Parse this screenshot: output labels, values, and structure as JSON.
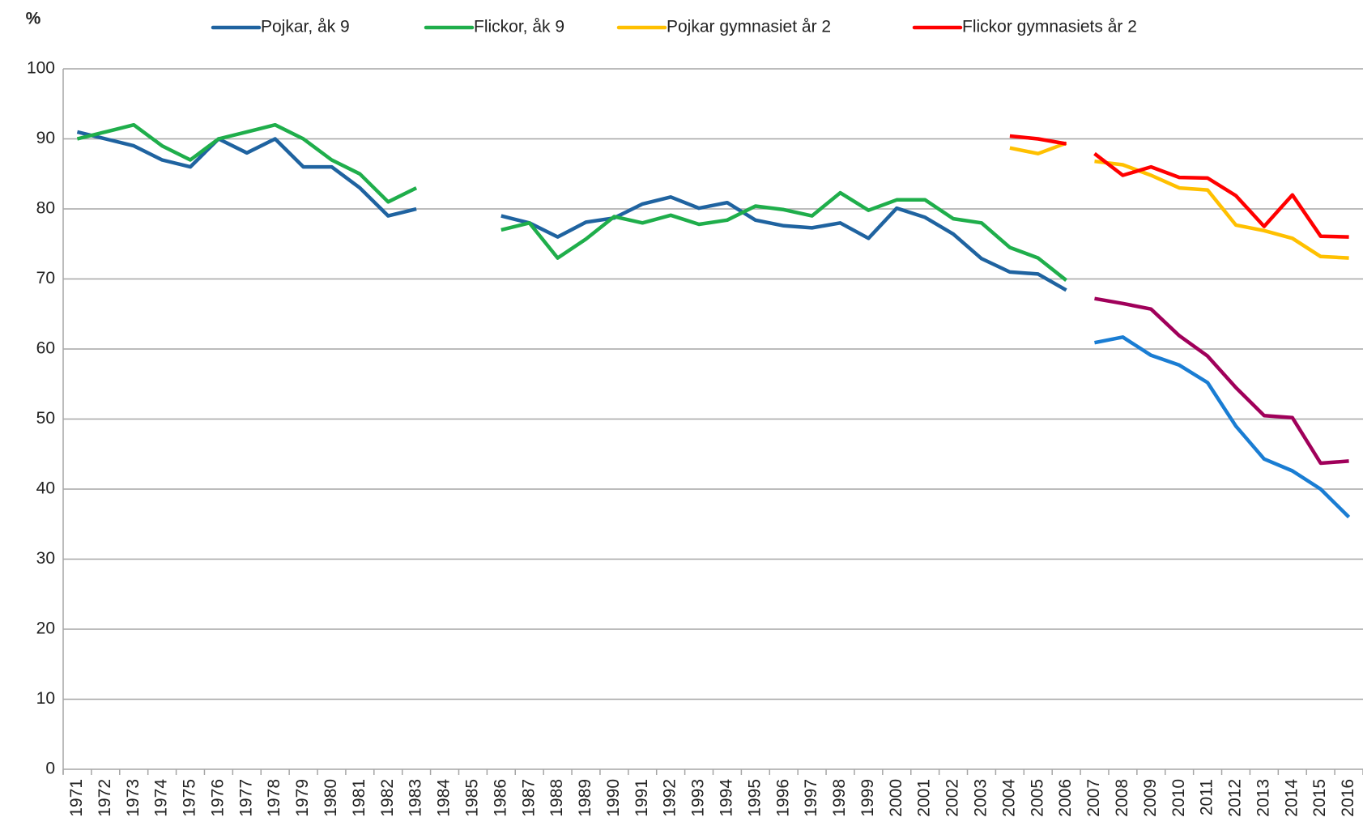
{
  "chart_data": {
    "type": "line",
    "ylabel": "%",
    "categories": [
      "1971",
      "1972",
      "1973",
      "1974",
      "1975",
      "1976",
      "1977",
      "1978",
      "1979",
      "1980",
      "1981",
      "1982",
      "1983",
      "1984",
      "1985",
      "1986",
      "1987",
      "1988",
      "1989",
      "1990",
      "1991",
      "1992",
      "1993",
      "1994",
      "1995",
      "1996",
      "1997",
      "1998",
      "1999",
      "2000",
      "2001",
      "2002",
      "2003",
      "2004",
      "2005",
      "2006",
      "2007",
      "2008",
      "2009",
      "2010",
      "2011",
      "2012",
      "2013",
      "2014",
      "2015",
      "2016"
    ],
    "ylim": [
      0,
      100
    ],
    "yticks": [
      0,
      10,
      20,
      30,
      40,
      50,
      60,
      70,
      80,
      90,
      100
    ],
    "grid": true,
    "series": [
      {
        "name": "Pojkar, åk 9",
        "color": "#1f63a0",
        "values": [
          91,
          90,
          89,
          87,
          86,
          90,
          88,
          90,
          86,
          86,
          83,
          79,
          80,
          null,
          null,
          79,
          78,
          76,
          78.1,
          78.7,
          80.7,
          81.7,
          80.1,
          80.9,
          78.4,
          77.6,
          77.3,
          78,
          75.8,
          80.1,
          78.8,
          76.4,
          72.9,
          71,
          70.7,
          68.4,
          null,
          null,
          null,
          null,
          null,
          null,
          null,
          null,
          null,
          null
        ]
      },
      {
        "name": "Flickor, åk 9",
        "color": "#1fae4b",
        "values": [
          90,
          91,
          92,
          89,
          87,
          90,
          91,
          92,
          90,
          87,
          85,
          81,
          83,
          null,
          null,
          77,
          78,
          73,
          75.7,
          78.9,
          78,
          79.1,
          77.8,
          78.4,
          80.4,
          79.9,
          79,
          82.3,
          79.8,
          81.3,
          81.3,
          78.6,
          78,
          74.5,
          73,
          69.8,
          null,
          null,
          null,
          null,
          null,
          null,
          null,
          null,
          null,
          null
        ]
      },
      {
        "name": "Pojkar gymnasiet år 2",
        "color": "#ffc000",
        "values": [
          null,
          null,
          null,
          null,
          null,
          null,
          null,
          null,
          null,
          null,
          null,
          null,
          null,
          null,
          null,
          null,
          null,
          null,
          null,
          null,
          null,
          null,
          null,
          null,
          null,
          null,
          null,
          null,
          null,
          null,
          null,
          null,
          null,
          88.7,
          87.9,
          89.4,
          null,
          null,
          null,
          null,
          null,
          null,
          null,
          null,
          null,
          null
        ]
      },
      {
        "name": "Flickor gymnasiets år 2",
        "color": "#ff0000",
        "values": [
          null,
          null,
          null,
          null,
          null,
          null,
          null,
          null,
          null,
          null,
          null,
          null,
          null,
          null,
          null,
          null,
          null,
          null,
          null,
          null,
          null,
          null,
          null,
          null,
          null,
          null,
          null,
          null,
          null,
          null,
          null,
          null,
          null,
          90.4,
          90,
          89.3,
          null,
          null,
          null,
          null,
          null,
          null,
          null,
          null,
          null,
          null
        ]
      },
      {
        "color": "#ffc000",
        "values": [
          null,
          null,
          null,
          null,
          null,
          null,
          null,
          null,
          null,
          null,
          null,
          null,
          null,
          null,
          null,
          null,
          null,
          null,
          null,
          null,
          null,
          null,
          null,
          null,
          null,
          null,
          null,
          null,
          null,
          null,
          null,
          null,
          null,
          null,
          null,
          null,
          86.8,
          86.3,
          84.8,
          83,
          82.7,
          77.7,
          76.9,
          75.8,
          73.2,
          73
        ]
      },
      {
        "color": "#ff0000",
        "values": [
          null,
          null,
          null,
          null,
          null,
          null,
          null,
          null,
          null,
          null,
          null,
          null,
          null,
          null,
          null,
          null,
          null,
          null,
          null,
          null,
          null,
          null,
          null,
          null,
          null,
          null,
          null,
          null,
          null,
          null,
          null,
          null,
          null,
          null,
          null,
          null,
          87.9,
          84.8,
          86,
          84.5,
          84.4,
          81.9,
          77.5,
          82,
          76.1,
          76
        ]
      },
      {
        "color": "#1a7dd3",
        "values": [
          null,
          null,
          null,
          null,
          null,
          null,
          null,
          null,
          null,
          null,
          null,
          null,
          null,
          null,
          null,
          null,
          null,
          null,
          null,
          null,
          null,
          null,
          null,
          null,
          null,
          null,
          null,
          null,
          null,
          null,
          null,
          null,
          null,
          null,
          null,
          null,
          60.9,
          61.7,
          59.1,
          57.7,
          55.2,
          49,
          44.3,
          42.6,
          40,
          36
        ]
      },
      {
        "color": "#a0005a",
        "values": [
          null,
          null,
          null,
          null,
          null,
          null,
          null,
          null,
          null,
          null,
          null,
          null,
          null,
          null,
          null,
          null,
          null,
          null,
          null,
          null,
          null,
          null,
          null,
          null,
          null,
          null,
          null,
          null,
          null,
          null,
          null,
          null,
          null,
          null,
          null,
          null,
          67.2,
          66.5,
          65.7,
          61.9,
          59,
          54.5,
          50.5,
          50.2,
          43.7,
          44
        ]
      }
    ]
  }
}
